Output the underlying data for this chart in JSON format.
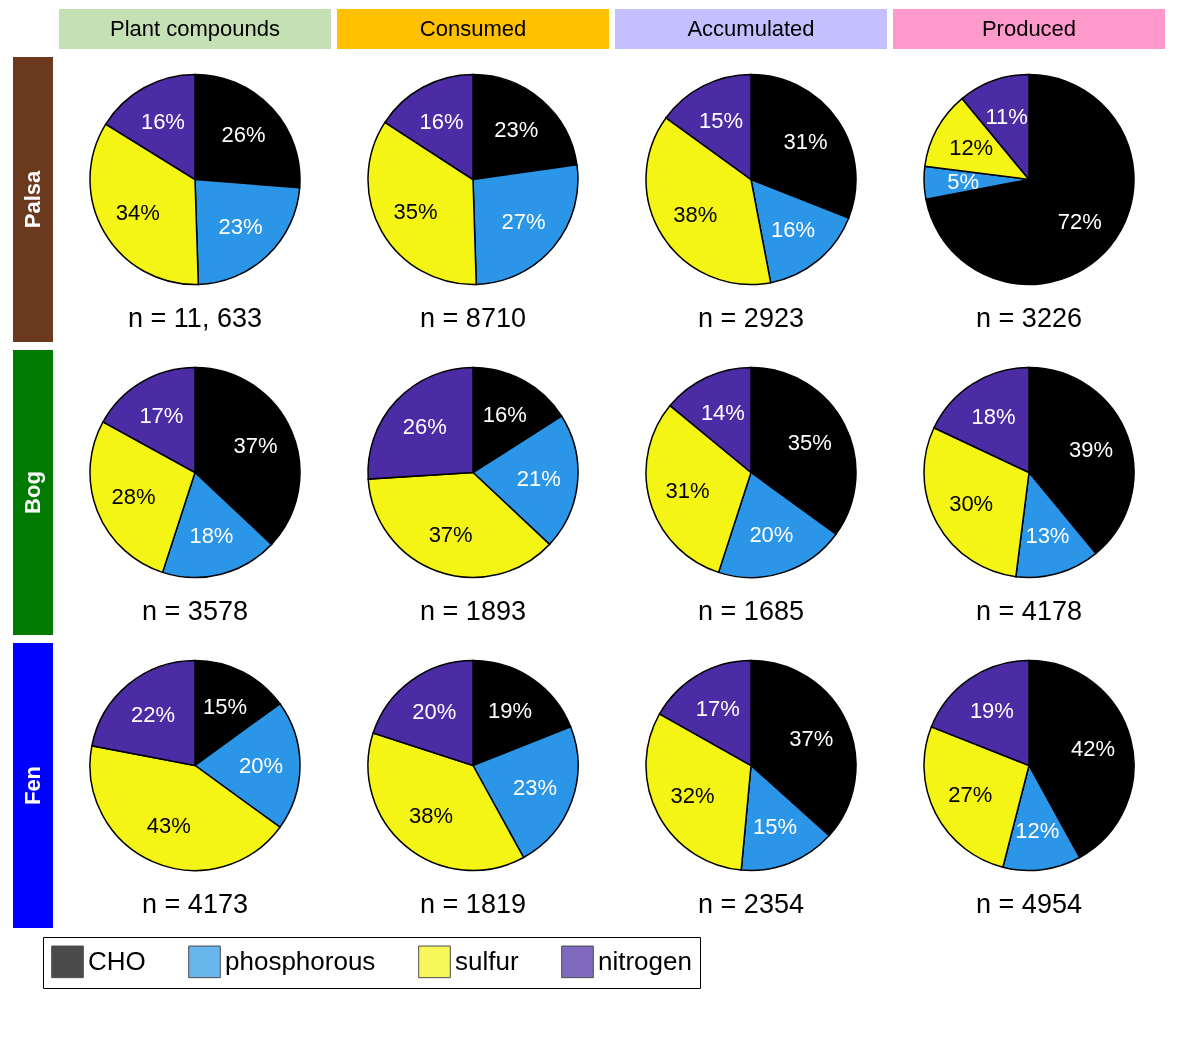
{
  "chart_data": [
    {
      "type": "pie",
      "title": "Plant compounds",
      "ylabel": "Palsa",
      "categories": [
        null,
        null,
        null,
        null
      ],
      "values": [
        26,
        23,
        34,
        16
      ],
      "value_labels": [
        "26%",
        "23%",
        "34%",
        "16%"
      ],
      "colors": [
        "#000000",
        "#2b96e8",
        "#f5f515",
        "#4b2ca4"
      ],
      "annotations": [
        "n = 11, 633"
      ]
    },
    {
      "type": "pie",
      "title": "Consumed",
      "categories": [
        null,
        null,
        null,
        null
      ],
      "values": [
        23,
        27,
        35,
        16
      ],
      "value_labels": [
        "23%",
        "27%",
        "35%",
        "16%"
      ],
      "colors": [
        "#000000",
        "#2b96e8",
        "#f5f515",
        "#4b2ca4"
      ],
      "annotations": [
        "n = 8710"
      ]
    },
    {
      "type": "pie",
      "title": "Accumulated",
      "categories": [
        null,
        null,
        null,
        null
      ],
      "values": [
        31,
        16,
        38,
        15
      ],
      "value_labels": [
        "31%",
        "16%",
        "38%",
        "15%"
      ],
      "colors": [
        "#000000",
        "#2b96e8",
        "#f5f515",
        "#4b2ca4"
      ],
      "annotations": [
        "n = 2923"
      ]
    },
    {
      "type": "pie",
      "title": "Produced",
      "categories": [
        null,
        null,
        null,
        null
      ],
      "values": [
        72,
        5,
        12,
        11
      ],
      "value_labels": [
        "72%",
        "5%",
        "12%",
        "11%"
      ],
      "colors": [
        "#000000",
        "#2b96e8",
        "#f5f515",
        "#4b2ca4"
      ],
      "annotations": [
        "n = 3226"
      ]
    },
    {
      "type": "pie",
      "ylabel": "Bog",
      "categories": [
        null,
        null,
        null,
        null
      ],
      "values": [
        37,
        18,
        28,
        17
      ],
      "value_labels": [
        "37%",
        "18%",
        "28%",
        "17%"
      ],
      "colors": [
        "#000000",
        "#2b96e8",
        "#f5f515",
        "#4b2ca4"
      ],
      "annotations": [
        "n = 3578"
      ]
    },
    {
      "type": "pie",
      "categories": [
        null,
        null,
        null,
        null
      ],
      "values": [
        16,
        21,
        37,
        26
      ],
      "value_labels": [
        "16%",
        "21%",
        "37%",
        "26%"
      ],
      "colors": [
        "#000000",
        "#2b96e8",
        "#f5f515",
        "#4b2ca4"
      ],
      "annotations": [
        "n = 1893"
      ]
    },
    {
      "type": "pie",
      "categories": [
        null,
        null,
        null,
        null
      ],
      "values": [
        35,
        20,
        31,
        14
      ],
      "value_labels": [
        "35%",
        "20%",
        "31%",
        "14%"
      ],
      "colors": [
        "#000000",
        "#2b96e8",
        "#f5f515",
        "#4b2ca4"
      ],
      "annotations": [
        "n = 1685"
      ]
    },
    {
      "type": "pie",
      "categories": [
        null,
        null,
        null,
        null
      ],
      "values": [
        39,
        13,
        30,
        18
      ],
      "value_labels": [
        "39%",
        "13%",
        "30%",
        "18%"
      ],
      "colors": [
        "#000000",
        "#2b96e8",
        "#f5f515",
        "#4b2ca4"
      ],
      "annotations": [
        "n = 4178"
      ]
    },
    {
      "type": "pie",
      "ylabel": "Fen",
      "categories": [
        null,
        null,
        null,
        null
      ],
      "values": [
        15,
        20,
        43,
        22
      ],
      "value_labels": [
        "15%",
        "20%",
        "43%",
        "22%"
      ],
      "colors": [
        "#000000",
        "#2b96e8",
        "#f5f515",
        "#4b2ca4"
      ],
      "annotations": [
        "n = 4173"
      ]
    },
    {
      "type": "pie",
      "categories": [
        null,
        null,
        null,
        null
      ],
      "values": [
        19,
        23,
        38,
        20
      ],
      "value_labels": [
        "19%",
        "23%",
        "38%",
        "20%"
      ],
      "colors": [
        "#000000",
        "#2b96e8",
        "#f5f515",
        "#4b2ca4"
      ],
      "annotations": [
        "n = 1819"
      ]
    },
    {
      "type": "pie",
      "categories": [
        null,
        null,
        null,
        null
      ],
      "values": [
        37,
        15,
        32,
        17
      ],
      "value_labels": [
        "37%",
        "15%",
        "32%",
        "17%"
      ],
      "colors": [
        "#000000",
        "#2b96e8",
        "#f5f515",
        "#4b2ca4"
      ],
      "annotations": [
        "n = 2354"
      ]
    },
    {
      "type": "pie",
      "categories": [
        "CHO",
        "phosphorous",
        "sulfur",
        "nitrogen"
      ],
      "values": [
        42,
        12,
        27,
        19
      ],
      "value_labels": [
        "42%",
        "12%",
        "27%",
        "19%"
      ],
      "colors": [
        "#000000",
        "#2b96e8",
        "#f5f515",
        "#4b2ca4"
      ],
      "annotations": [
        "n = 4954"
      ],
      "legend": "bottom"
    }
  ]
}
